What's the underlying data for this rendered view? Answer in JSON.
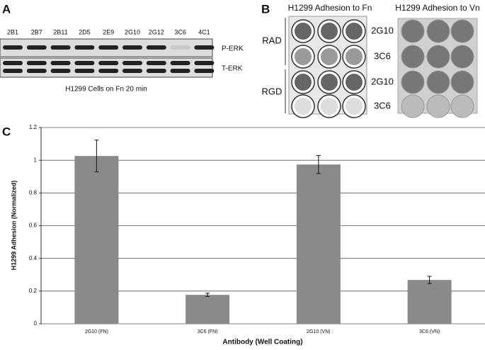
{
  "panel_a": {
    "label": "A",
    "lanes": [
      "2B1",
      "2B7",
      "2B11",
      "2D5",
      "2E9",
      "2G10",
      "2G12",
      "3C6",
      "4C1"
    ],
    "rows": [
      "P-ERK",
      "T-ERK"
    ],
    "caption": "H1299 Cells on Fn 20 min"
  },
  "panel_b": {
    "label": "B",
    "titles": [
      "H1299 Adhesion to Fn",
      "H1299 Adhesion to Vn"
    ],
    "groups": [
      "RAD",
      "RGD"
    ],
    "rows": [
      "2G10",
      "3C6",
      "2G10",
      "3C6"
    ]
  },
  "chart_data": {
    "type": "bar",
    "panel_label": "C",
    "xlabel": "Antibody (Well Coating)",
    "ylabel": "H1299 Adhesion (Normalized)",
    "categories": [
      "2G10 (FN)",
      "3C6 (FN)",
      "2G10 (VN)",
      "3C6 (VN)"
    ],
    "values": [
      1.026,
      0.177,
      0.974,
      0.268
    ],
    "errors": [
      0.097,
      0.01,
      0.055,
      0.022
    ],
    "color": "#8a8a8a",
    "ylim": [
      0,
      1.2
    ],
    "yticks": [
      0,
      0.2,
      0.4,
      0.6,
      0.8,
      1,
      1.2
    ],
    "grid": true
  }
}
